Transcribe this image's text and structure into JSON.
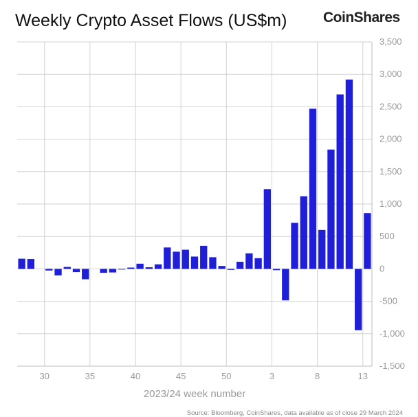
{
  "header": {
    "title": "Weekly Crypto Asset Flows (US$m)",
    "brand": "CoinShares"
  },
  "footer": {
    "source": "Source: Bloomberg, CoinShares, data available as of close 29 March 2024"
  },
  "chart_data": {
    "type": "bar",
    "title": "Weekly Crypto Asset Flows (US$m)",
    "xlabel": "2023/24 week number",
    "ylabel": "",
    "ylim": [
      -1500,
      3500
    ],
    "yticks": [
      -1500,
      -1000,
      -500,
      0,
      500,
      1000,
      1500,
      2000,
      2500,
      3000,
      3500
    ],
    "ytick_labels": [
      "-1,500",
      "-1,000",
      "-500",
      "0",
      "500",
      "1,000",
      "1,500",
      "2,000",
      "2,500",
      "3,000",
      "3,500"
    ],
    "grid": true,
    "bar_color": "#1e1fd6",
    "categories": [
      "27",
      "28",
      "29",
      "30",
      "31",
      "32",
      "33",
      "34",
      "35",
      "36",
      "37",
      "38",
      "39",
      "40",
      "41",
      "42",
      "43",
      "44",
      "45",
      "46",
      "47",
      "48",
      "49",
      "50",
      "51",
      "52",
      "1",
      "2",
      "3",
      "4",
      "5",
      "6",
      "7",
      "8",
      "9",
      "10",
      "11",
      "12",
      "13"
    ],
    "x_tick_labels": [
      {
        "category": "30",
        "label": "30"
      },
      {
        "category": "35",
        "label": "35"
      },
      {
        "category": "40",
        "label": "40"
      },
      {
        "category": "45",
        "label": "45"
      },
      {
        "category": "50",
        "label": "50"
      },
      {
        "category": "3",
        "label": "3"
      },
      {
        "category": "8",
        "label": "8"
      },
      {
        "category": "13",
        "label": "13"
      }
    ],
    "values": [
      157,
      152,
      0,
      -25,
      -100,
      30,
      -50,
      -160,
      0,
      -60,
      -55,
      -10,
      20,
      80,
      25,
      70,
      330,
      265,
      295,
      190,
      355,
      180,
      45,
      -15,
      110,
      240,
      165,
      1230,
      -20,
      -485,
      710,
      1120,
      2470,
      600,
      1840,
      2690,
      2920,
      -945,
      860
    ]
  }
}
